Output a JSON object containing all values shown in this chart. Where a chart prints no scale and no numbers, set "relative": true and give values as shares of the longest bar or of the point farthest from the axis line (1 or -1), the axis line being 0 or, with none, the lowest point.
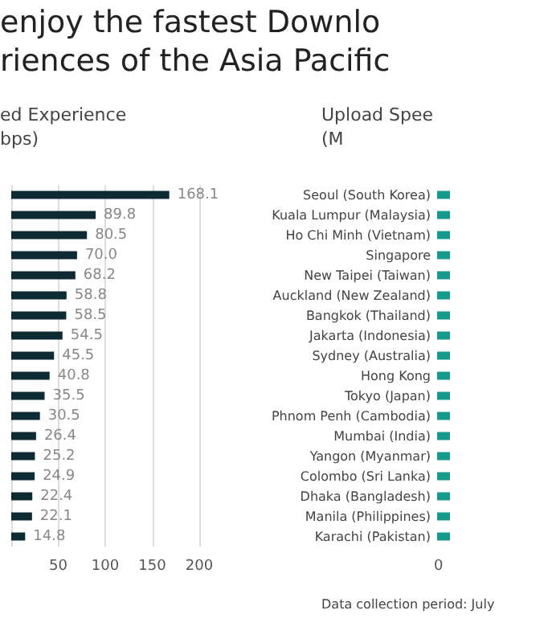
{
  "chart_data": [
    {
      "type": "bar",
      "title": "enjoy the fastest Downlo\nriences of the Asia Pacific",
      "xlabel": "ed Experience\nbps)",
      "orientation": "horizontal",
      "categories": [
        null,
        null,
        null,
        null,
        null,
        null,
        null,
        null,
        null,
        null,
        null,
        null,
        null,
        null,
        null,
        null,
        null,
        null
      ],
      "series": [
        {
          "color": "#0e2a33",
          "values": [
            168.1,
            89.8,
            80.5,
            70.0,
            68.2,
            58.8,
            58.5,
            54.5,
            45.5,
            40.8,
            35.5,
            30.5,
            26.4,
            25.2,
            24.9,
            22.4,
            22.1,
            14.8
          ]
        }
      ],
      "value_labels": [
        "168.1",
        "89.8",
        "80.5",
        "70.0",
        "68.2",
        "58.8",
        "58.5",
        "54.5",
        "45.5",
        "40.8",
        "35.5",
        "30.5",
        "26.4",
        "25.2",
        "24.9",
        "22.4",
        "22.1",
        "14.8"
      ],
      "xlim": [
        0,
        200
      ],
      "xticks": [
        {
          "value": 0,
          "label": null
        },
        50,
        100,
        150,
        200
      ],
      "grid": "x"
    },
    {
      "type": "bar",
      "xlabel": "Upload Spee\n(M",
      "orientation": "horizontal",
      "relative": true,
      "categories": [
        "Seoul (South Korea)",
        "Kuala Lumpur (Malaysia)",
        "Ho Chi Minh (Vietnam)",
        "Singapore",
        "New Taipei (Taiwan)",
        "Auckland (New Zealand)",
        "Bangkok (Thailand)",
        "Jakarta (Indonesia)",
        "Sydney (Australia)",
        "Hong Kong",
        "Tokyo (Japan)",
        "Phnom Penh (Cambodia)",
        "Mumbai (India)",
        "Yangon (Myanmar)",
        "Colombo (Sri Lanka)",
        "Dhaka (Bangladesh)",
        "Manila (Philippines)",
        "Karachi (Pakistan)"
      ],
      "series": [
        {
          "color": "#14998a",
          "values": [
            1,
            1,
            1,
            1,
            1,
            1,
            1,
            1,
            1,
            1,
            1,
            1,
            1,
            1,
            1,
            1,
            1,
            1
          ]
        }
      ],
      "annotations": [
        "0",
        "Data collection period: July"
      ]
    }
  ]
}
